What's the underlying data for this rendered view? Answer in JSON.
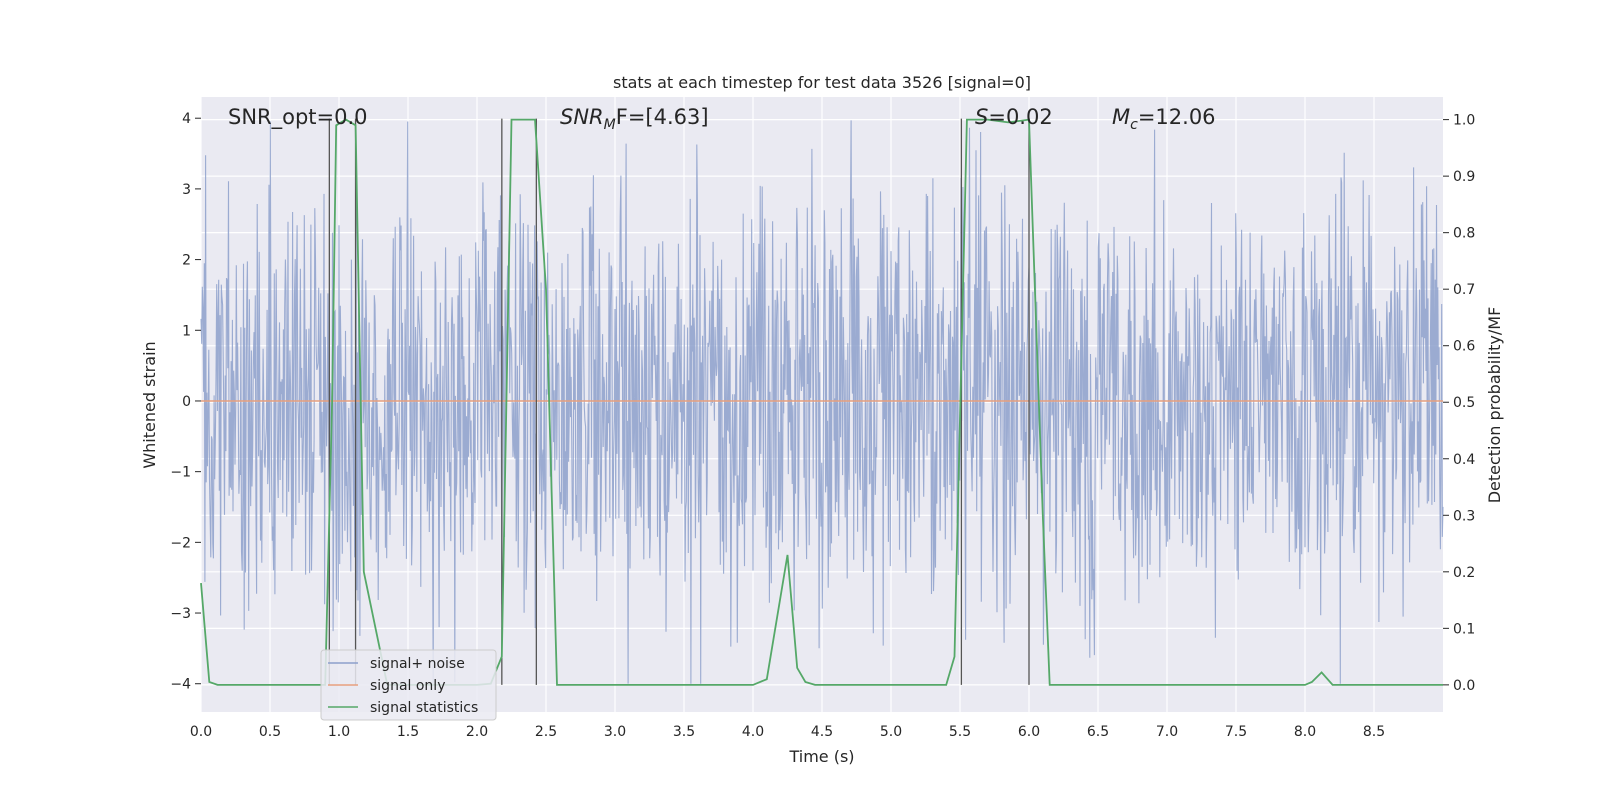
{
  "chart_data": {
    "type": "line",
    "title": "stats at each timestep for test data 3526 [signal=0]",
    "xlabel": "Time (s)",
    "ylabel": "Whitened strain",
    "y2label": "Detection probability/MF",
    "xlim": [
      0,
      9.0
    ],
    "ylim": [
      -4.4,
      4.3
    ],
    "y2lim": [
      -0.048,
      1.04
    ],
    "x_ticks": [
      "0.0",
      "0.5",
      "1.0",
      "1.5",
      "2.0",
      "2.5",
      "3.0",
      "3.5",
      "4.0",
      "4.5",
      "5.0",
      "5.5",
      "6.0",
      "6.5",
      "7.0",
      "7.5",
      "8.0",
      "8.5"
    ],
    "y_ticks": [
      "4",
      "3",
      "2",
      "1",
      "0",
      "−1",
      "−2",
      "−3",
      "−4"
    ],
    "y2_ticks": [
      "1.0",
      "0.9",
      "0.8",
      "0.7",
      "0.6",
      "0.5",
      "0.4",
      "0.3",
      "0.2",
      "0.1",
      "0.0"
    ],
    "grid": true,
    "legend_position": "lower-left",
    "annotations": {
      "snr_opt": "SNR_opt=0.0",
      "snr_mf_main": "SNR",
      "snr_mf_sub": "M",
      "snr_mf_rest": "F=[4.63]",
      "s_main": "S",
      "s_rest": "=0.02",
      "mc_main": "M",
      "mc_sub": "c",
      "mc_rest": "=12.06"
    },
    "vertical_lines_x": [
      0.93,
      1.12,
      2.18,
      2.43,
      5.51,
      6.0
    ],
    "series": [
      {
        "name": "signal+ noise",
        "color": "#8da0cb",
        "noise_envelope": {
          "typical_peak": 2.2,
          "max_peak": 4.0,
          "min_peak": -4.0
        }
      },
      {
        "name": "signal only",
        "color": "#e8a07e",
        "constant": 0.0
      },
      {
        "name": "signal statistics",
        "color": "#55a868",
        "axis": "right",
        "x": [
          0.0,
          0.06,
          0.12,
          0.5,
          0.9,
          0.95,
          0.98,
          1.05,
          1.12,
          1.18,
          1.35,
          2.0,
          2.1,
          2.18,
          2.25,
          2.3,
          2.42,
          2.5,
          2.58,
          3.0,
          4.0,
          4.1,
          4.25,
          4.32,
          4.38,
          4.45,
          5.0,
          5.4,
          5.46,
          5.55,
          5.7,
          5.85,
          6.0,
          6.1,
          6.15,
          7.0,
          8.0,
          8.05,
          8.12,
          8.2,
          9.0
        ],
        "values": [
          0.18,
          0.005,
          0.0,
          0.0,
          0.0,
          0.5,
          0.99,
          1.0,
          0.99,
          0.2,
          0.0,
          0.0,
          0.002,
          0.05,
          1.0,
          1.0,
          1.0,
          0.7,
          0.0,
          0.0,
          0.0,
          0.01,
          0.23,
          0.03,
          0.005,
          0.0,
          0.0,
          0.0,
          0.05,
          1.0,
          1.0,
          0.995,
          1.0,
          0.3,
          0.0,
          0.0,
          0.0,
          0.005,
          0.022,
          0.0,
          0.0
        ]
      }
    ]
  }
}
